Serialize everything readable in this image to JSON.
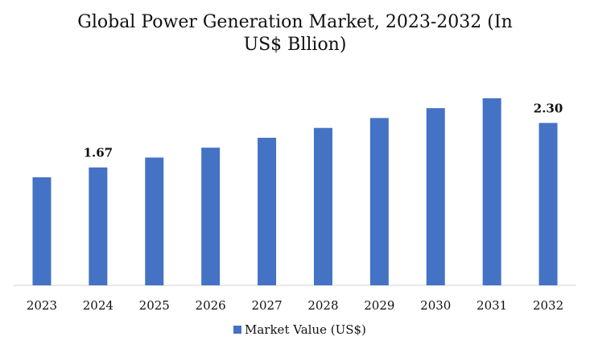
{
  "chart_data": {
    "type": "bar",
    "title_lines": [
      "Global Power Generation Market, 2023-2032 (In",
      "US$ Bllion)"
    ],
    "categories": [
      "2023",
      "2024",
      "2025",
      "2026",
      "2027",
      "2028",
      "2029",
      "2030",
      "2031",
      "2032"
    ],
    "series": [
      {
        "name": "Market Value (US$)",
        "color": "#4472C4",
        "values": [
          1.53,
          1.67,
          1.81,
          1.95,
          2.09,
          2.23,
          2.37,
          2.51,
          2.65,
          2.3
        ],
        "data_labels": {
          "1": "1.67",
          "9": "2.30"
        }
      }
    ],
    "ylim": [
      0,
      2.9
    ],
    "axis_line_color": "#d0d0d0",
    "grid": false,
    "legend_placement": "bottom-center"
  }
}
